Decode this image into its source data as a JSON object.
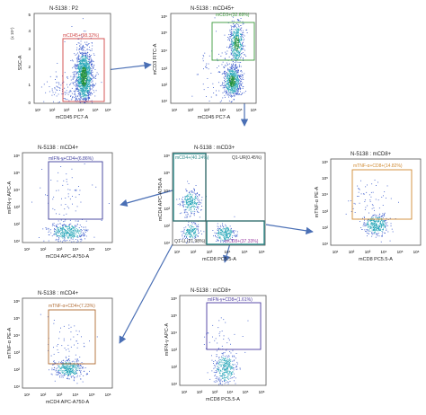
{
  "panels": [
    {
      "id": "p1",
      "title": "N-5138 : P2",
      "xlabel": "mCD45 PC7-A",
      "ylabel": "SSC-A",
      "y_scale_label": "(x 10⁴)",
      "x_ticks": [
        "10¹",
        "10²",
        "10³",
        "10⁴",
        "10⁵",
        "10⁶"
      ],
      "y_ticks": [
        "0",
        "1",
        "2",
        "3",
        "4",
        "5"
      ],
      "gates": [
        {
          "label": "mCD45+(98.32%)",
          "color": "#d04545"
        }
      ]
    },
    {
      "id": "p2",
      "title": "N-5138 : mCD45+",
      "xlabel": "mCD45 PC7-A",
      "ylabel": "mCD3 FITC-A",
      "x_ticks": [
        "10¹",
        "10²",
        "10³",
        "10⁴",
        "10⁵",
        "10⁶"
      ],
      "y_ticks": [
        "10¹",
        "10²",
        "10³",
        "10⁴",
        "10⁵",
        "10⁶"
      ],
      "gates": [
        {
          "label": "mCD3+(32.69%)",
          "color": "#3a9a3a"
        }
      ]
    },
    {
      "id": "p3",
      "title": "N-5138 : mCD3+",
      "xlabel": "mCD8 PC5.5-A",
      "ylabel": "mCD4 APC-A750-A",
      "x_ticks": [
        "10¹",
        "10²",
        "10³",
        "10⁴",
        "10⁵",
        "10⁶"
      ],
      "y_ticks": [
        "10¹",
        "10²",
        "10³",
        "10⁴",
        "10⁵",
        "10⁶"
      ],
      "gates": [
        {
          "label": "mCD4+(40.24%)",
          "color": "#3a9a9a"
        },
        {
          "label": "Q1-UR(0.45%)",
          "color": "#444444"
        },
        {
          "label": "Q1-LL(21.98%)",
          "color": "#444444"
        },
        {
          "label": "mCD8+(37.33%)",
          "color": "#9a3aa0"
        }
      ]
    },
    {
      "id": "p4",
      "title": "N-5138 : mCD4+",
      "xlabel": "mCD4 APC-A750-A",
      "ylabel": "mIFN-γ APC-A",
      "x_ticks": [
        "10¹",
        "10²",
        "10³",
        "10⁴",
        "10⁵",
        "10⁶"
      ],
      "y_ticks": [
        "10¹",
        "10²",
        "10³",
        "10⁴",
        "10⁵",
        "10⁶"
      ],
      "gates": [
        {
          "label": "mIFN-γ+CD4+(6.86%)",
          "color": "#3a3a9a"
        }
      ]
    },
    {
      "id": "p5",
      "title": "N-5138 : mCD8+",
      "xlabel": "mCD8 PC5.5-A",
      "ylabel": "mTNF-α PE-A",
      "x_ticks": [
        "10¹",
        "10²",
        "10³",
        "10⁴",
        "10⁵",
        "10⁶"
      ],
      "y_ticks": [
        "10¹",
        "10²",
        "10³",
        "10⁴",
        "10⁵",
        "10⁶"
      ],
      "gates": [
        {
          "label": "mTNF-α+CD8+(14.82%)",
          "color": "#d08a30"
        }
      ]
    },
    {
      "id": "p6",
      "title": "N-5138 : mCD4+",
      "xlabel": "mCD4 APC-A750-A",
      "ylabel": "mTNF-α PE-A",
      "x_ticks": [
        "10¹",
        "10²",
        "10³",
        "10⁴",
        "10⁵",
        "10⁶"
      ],
      "y_ticks": [
        "10¹",
        "10²",
        "10³",
        "10⁴",
        "10⁵",
        "10⁶"
      ],
      "gates": [
        {
          "label": "mTNF-α+CD4+(7.23%)",
          "color": "#b06a30"
        }
      ]
    },
    {
      "id": "p7",
      "title": "N-5138 : mCD8+",
      "xlabel": "mCD8 PC5.5-A",
      "ylabel": "mIFN-γ APC-A",
      "x_ticks": [
        "10¹",
        "10²",
        "10³",
        "10⁴",
        "10⁵",
        "10⁶"
      ],
      "y_ticks": [
        "10¹",
        "10²",
        "10³",
        "10⁴",
        "10⁵",
        "10⁶"
      ],
      "gates": [
        {
          "label": "mIFN-γ+CD8+(1.61%)",
          "color": "#4a3aa0"
        }
      ]
    }
  ],
  "chart_data": [
    {
      "type": "scatter",
      "title": "N-5138 : P2",
      "xlabel": "mCD45 PC7-A",
      "ylabel": "SSC-A",
      "x_scale": "log",
      "xlim": [
        10,
        1000000
      ],
      "ylim": [
        0,
        50000
      ],
      "gates": [
        {
          "name": "mCD45+",
          "percent": 98.32
        }
      ]
    },
    {
      "type": "scatter",
      "title": "N-5138 : mCD45+",
      "xlabel": "mCD45 PC7-A",
      "ylabel": "mCD3 FITC-A",
      "x_scale": "log",
      "y_scale": "log",
      "gates": [
        {
          "name": "mCD3+",
          "percent": 32.69
        }
      ]
    },
    {
      "type": "scatter",
      "title": "N-5138 : mCD3+",
      "xlabel": "mCD8 PC5.5-A",
      "ylabel": "mCD4 APC-A750-A",
      "x_scale": "log",
      "y_scale": "log",
      "gates": [
        {
          "name": "mCD4+",
          "percent": 40.24
        },
        {
          "name": "Q1-UR",
          "percent": 0.45
        },
        {
          "name": "Q1-LL",
          "percent": 21.98
        },
        {
          "name": "mCD8+",
          "percent": 37.33
        }
      ]
    },
    {
      "type": "scatter",
      "title": "N-5138 : mCD4+",
      "xlabel": "mCD4 APC-A750-A",
      "ylabel": "mIFN-γ APC-A",
      "gates": [
        {
          "name": "mIFN-γ+CD4+",
          "percent": 6.86
        }
      ]
    },
    {
      "type": "scatter",
      "title": "N-5138 : mCD8+",
      "xlabel": "mCD8 PC5.5-A",
      "ylabel": "mTNF-α PE-A",
      "gates": [
        {
          "name": "mTNF-α+CD8+",
          "percent": 14.82
        }
      ]
    },
    {
      "type": "scatter",
      "title": "N-5138 : mCD4+",
      "xlabel": "mCD4 APC-A750-A",
      "ylabel": "mTNF-α PE-A",
      "gates": [
        {
          "name": "mTNF-α+CD4+",
          "percent": 7.23
        }
      ]
    },
    {
      "type": "scatter",
      "title": "N-5138 : mCD8+",
      "xlabel": "mCD8 PC5.5-A",
      "ylabel": "mIFN-γ APC-A",
      "gates": [
        {
          "name": "mIFN-γ+CD8+",
          "percent": 1.61
        }
      ]
    }
  ],
  "colors": {
    "arrow": "#4a6fb5",
    "dense": "#1f8f3a",
    "mid": "#2aa7b8",
    "sparse": "#3b5bcc"
  }
}
